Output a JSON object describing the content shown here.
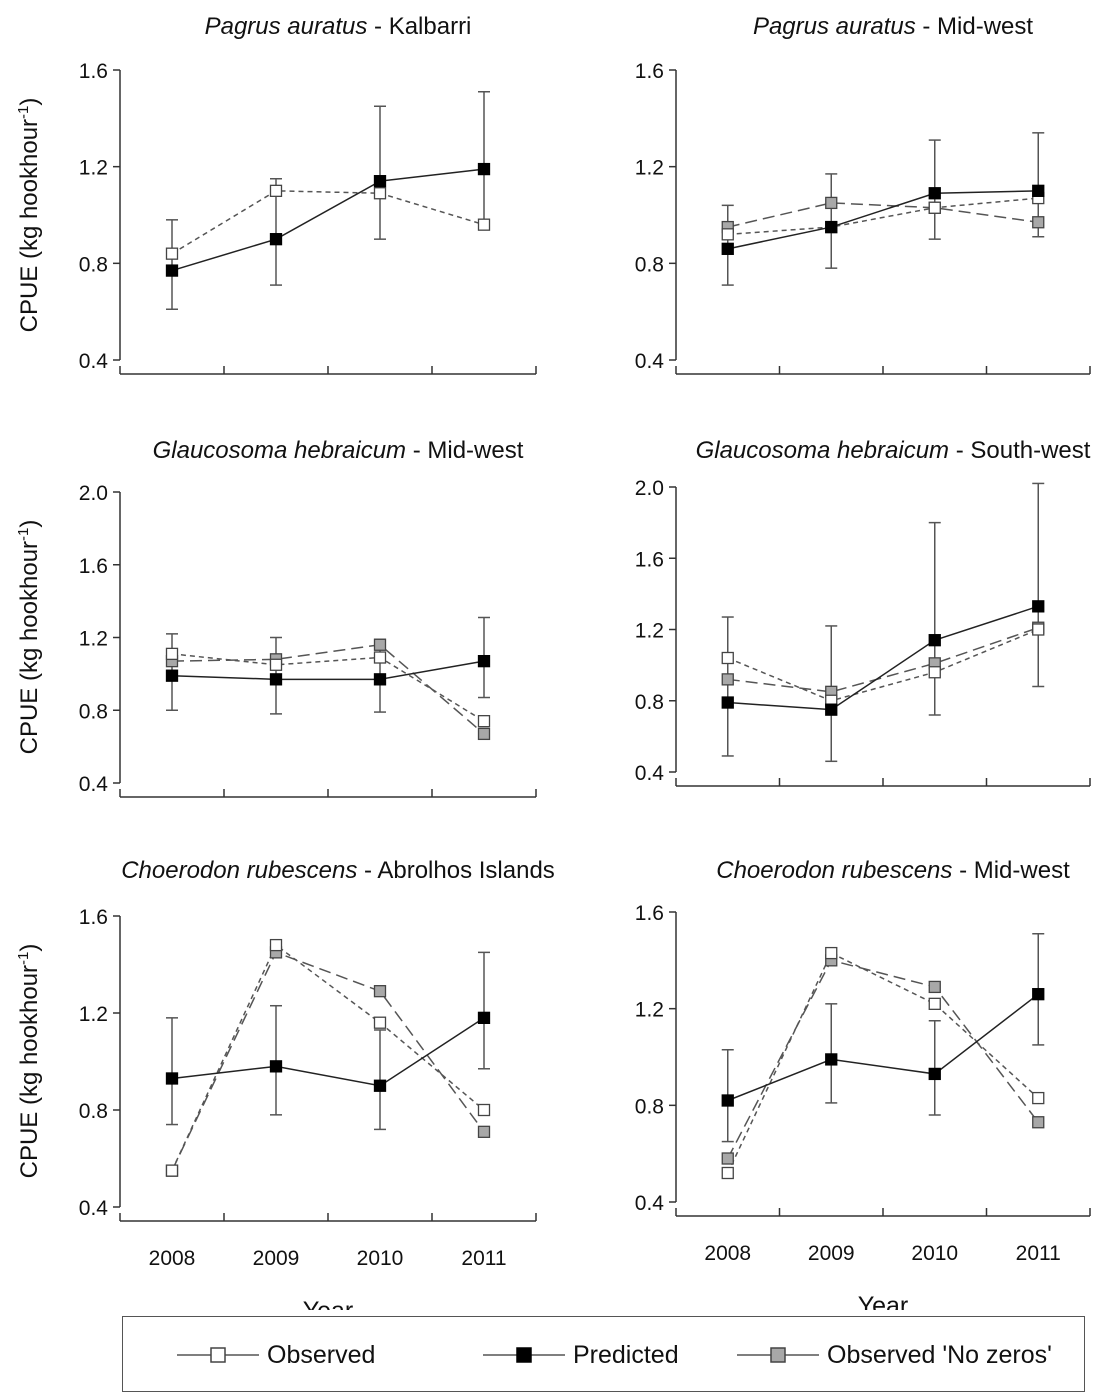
{
  "chart_data": [
    {
      "type": "line",
      "title_species": "Pagrus auratus",
      "title_region": " - Kalbarri",
      "ylabel": "CPUE (kg hookhour",
      "ylabel_sup": "-1",
      "ylabel_close": ")",
      "xlabel": "",
      "x": [
        "2008",
        "2009",
        "2010",
        "2011"
      ],
      "ylim": [
        0.4,
        1.6
      ],
      "yticks": [
        "0.4",
        "0.8",
        "1.2",
        "1.6"
      ],
      "series": [
        {
          "name": "Observed",
          "values": [
            0.84,
            1.1,
            1.09,
            0.96
          ]
        },
        {
          "name": "Predicted",
          "values": [
            0.77,
            0.9,
            1.14,
            1.19
          ],
          "err_low": [
            0.61,
            0.71,
            0.9,
            0.94
          ],
          "err_high": [
            0.98,
            1.15,
            1.45,
            1.51
          ]
        }
      ]
    },
    {
      "type": "line",
      "title_species": "Pagrus auratus",
      "title_region": " - Mid-west",
      "ylabel": "",
      "ylabel_sup": "",
      "ylabel_close": "",
      "xlabel": "",
      "x": [
        "2008",
        "2009",
        "2010",
        "2011"
      ],
      "ylim": [
        0.4,
        1.6
      ],
      "yticks": [
        "0.4",
        "0.8",
        "1.2",
        "1.6"
      ],
      "series": [
        {
          "name": "Observed",
          "values": [
            0.92,
            0.95,
            1.03,
            1.07
          ]
        },
        {
          "name": "Predicted",
          "values": [
            0.86,
            0.95,
            1.09,
            1.1
          ],
          "err_low": [
            0.71,
            0.78,
            0.9,
            0.91
          ],
          "err_high": [
            1.04,
            1.17,
            1.31,
            1.34
          ]
        },
        {
          "name": "Observed 'No zeros'",
          "values": [
            0.95,
            1.05,
            1.03,
            0.97
          ]
        }
      ]
    },
    {
      "type": "line",
      "title_species": "Glaucosoma hebraicum",
      "title_region": " - Mid-west",
      "ylabel": "CPUE (kg hookhour",
      "ylabel_sup": "-1",
      "ylabel_close": ")",
      "xlabel": "",
      "x": [
        "2008",
        "2009",
        "2010",
        "2011"
      ],
      "ylim": [
        0.4,
        2.0
      ],
      "yticks": [
        "0.4",
        "0.8",
        "1.2",
        "1.6",
        "2.0"
      ],
      "series": [
        {
          "name": "Observed",
          "values": [
            1.11,
            1.05,
            1.09,
            0.74
          ]
        },
        {
          "name": "Predicted",
          "values": [
            0.99,
            0.97,
            0.97,
            1.07
          ],
          "err_low": [
            0.8,
            0.78,
            0.79,
            0.87
          ],
          "err_high": [
            1.22,
            1.2,
            1.19,
            1.31
          ]
        },
        {
          "name": "Observed 'No zeros'",
          "values": [
            1.07,
            1.08,
            1.16,
            0.67
          ]
        }
      ]
    },
    {
      "type": "line",
      "title_species": "Glaucosoma hebraicum",
      "title_region": " - South-west",
      "ylabel": "",
      "ylabel_sup": "",
      "ylabel_close": "",
      "xlabel": "",
      "x": [
        "2008",
        "2009",
        "2010",
        "2011"
      ],
      "ylim": [
        0.4,
        2.0
      ],
      "yticks": [
        "0.4",
        "0.8",
        "1.2",
        "1.6",
        "2.0"
      ],
      "series": [
        {
          "name": "Observed",
          "values": [
            1.04,
            0.8,
            0.96,
            1.2
          ]
        },
        {
          "name": "Predicted",
          "values": [
            0.79,
            0.75,
            1.14,
            1.33
          ],
          "err_low": [
            0.49,
            0.46,
            0.72,
            0.88
          ],
          "err_high": [
            1.27,
            1.22,
            1.8,
            2.02
          ]
        },
        {
          "name": "Observed 'No zeros'",
          "values": [
            0.92,
            0.85,
            1.01,
            1.21
          ]
        }
      ]
    },
    {
      "type": "line",
      "title_species": "Choerodon rubescens",
      "title_region": " - Abrolhos Islands",
      "ylabel": "CPUE (kg hookhour",
      "ylabel_sup": "-1",
      "ylabel_close": ")",
      "xlabel": "Year",
      "x": [
        "2008",
        "2009",
        "2010",
        "2011"
      ],
      "ylim": [
        0.4,
        1.6
      ],
      "yticks": [
        "0.4",
        "0.8",
        "1.2",
        "1.6"
      ],
      "series": [
        {
          "name": "Observed",
          "values": [
            0.55,
            1.48,
            1.16,
            0.8
          ]
        },
        {
          "name": "Predicted",
          "values": [
            0.93,
            0.98,
            0.9,
            1.18
          ],
          "err_low": [
            0.74,
            0.78,
            0.72,
            0.97
          ],
          "err_high": [
            1.18,
            1.23,
            1.13,
            1.45
          ]
        },
        {
          "name": "Observed 'No zeros'",
          "values": [
            0.55,
            1.45,
            1.29,
            0.71
          ]
        }
      ]
    },
    {
      "type": "line",
      "title_species": "Choerodon rubescens",
      "title_region": " - Mid-west",
      "ylabel": "",
      "ylabel_sup": "",
      "ylabel_close": "",
      "xlabel": "Year",
      "x": [
        "2008",
        "2009",
        "2010",
        "2011"
      ],
      "ylim": [
        0.4,
        1.6
      ],
      "yticks": [
        "0.4",
        "0.8",
        "1.2",
        "1.6"
      ],
      "series": [
        {
          "name": "Observed",
          "values": [
            0.52,
            1.43,
            1.22,
            0.83
          ]
        },
        {
          "name": "Predicted",
          "values": [
            0.82,
            0.99,
            0.93,
            1.26
          ],
          "err_low": [
            0.65,
            0.81,
            0.76,
            1.05
          ],
          "err_high": [
            1.03,
            1.22,
            1.15,
            1.51
          ]
        },
        {
          "name": "Observed 'No zeros'",
          "values": [
            0.58,
            1.4,
            1.29,
            0.73
          ]
        }
      ]
    }
  ],
  "legend": {
    "placement": "bottom",
    "items": [
      {
        "label": "Observed",
        "marker_fill": "#ffffff"
      },
      {
        "label": "Predicted",
        "marker_fill": "#000000"
      },
      {
        "label": "Observed 'No zeros'",
        "marker_fill": "#a8a8a8"
      }
    ]
  },
  "colors": {
    "axis": "#333333",
    "errorbar": "#555555",
    "observed_fill": "#ffffff",
    "predicted_fill": "#000000",
    "nozeros_fill": "#a8a8a8"
  }
}
